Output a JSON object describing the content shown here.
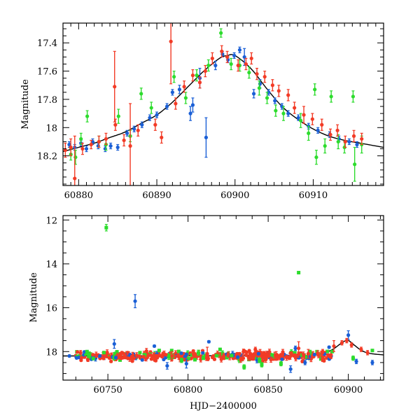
{
  "chart_data": [
    {
      "type": "scatter",
      "title": "",
      "xlabel": "",
      "ylabel": "Magnitude",
      "xlim": [
        60878,
        60919
      ],
      "ylim": [
        18.41,
        17.26
      ],
      "y_inverted": true,
      "x_ticks": [
        60880,
        60890,
        60900,
        60910
      ],
      "y_ticks": [
        17.4,
        17.6,
        17.8,
        18,
        18.2
      ],
      "model_curve": {
        "color": "#000000",
        "points": [
          [
            60878,
            18.17
          ],
          [
            60880,
            18.14
          ],
          [
            60882,
            18.11
          ],
          [
            60884,
            18.07
          ],
          [
            60886,
            18.03
          ],
          [
            60888,
            17.97
          ],
          [
            60890,
            17.91
          ],
          [
            60892,
            17.82
          ],
          [
            60894,
            17.71
          ],
          [
            60896,
            17.6
          ],
          [
            60898,
            17.51
          ],
          [
            60899,
            17.49
          ],
          [
            60900,
            17.49
          ],
          [
            60902,
            17.58
          ],
          [
            60904,
            17.72
          ],
          [
            60906,
            17.85
          ],
          [
            60908,
            17.94
          ],
          [
            60910,
            18.01
          ],
          [
            60912,
            18.06
          ],
          [
            60914,
            18.09
          ],
          [
            60916,
            18.11
          ],
          [
            60919,
            18.14
          ]
        ]
      },
      "series": [
        {
          "color": "#1a5fd6",
          "points": [
            [
              60878.8,
              18.12,
              0.02
            ],
            [
              60879.5,
              18.14,
              0.02
            ],
            [
              60880.3,
              18.11,
              0.02
            ],
            [
              60881,
              18.15,
              0.02
            ],
            [
              60881.8,
              18.1,
              0.02
            ],
            [
              60882.5,
              18.13,
              0.02
            ],
            [
              60883.4,
              18.15,
              0.02
            ],
            [
              60884.1,
              18.13,
              0.02
            ],
            [
              60885,
              18.14,
              0.02
            ],
            [
              60886.2,
              18.04,
              0.02
            ],
            [
              60887.1,
              18.01,
              0.02
            ],
            [
              60888.1,
              17.98,
              0.02
            ],
            [
              60889.1,
              17.93,
              0.02
            ],
            [
              60890,
              17.91,
              0.02
            ],
            [
              60891.3,
              17.85,
              0.02
            ],
            [
              60892,
              17.75,
              0.02
            ],
            [
              60892.9,
              17.73,
              0.03
            ],
            [
              60894.3,
              17.9,
              0.05
            ],
            [
              60894.6,
              17.84,
              0.05
            ],
            [
              60895.5,
              17.65,
              0.07
            ],
            [
              60896.3,
              18.07,
              0.14
            ],
            [
              60897.5,
              17.56,
              0.03
            ],
            [
              60898.4,
              17.48,
              0.02
            ],
            [
              60899.1,
              17.52,
              0.02
            ],
            [
              60899.9,
              17.49,
              0.02
            ],
            [
              60900.6,
              17.45,
              0.02
            ],
            [
              60901.2,
              17.5,
              0.06
            ],
            [
              60902.4,
              17.76,
              0.03
            ],
            [
              60903.2,
              17.69,
              0.03
            ],
            [
              60904.3,
              17.75,
              0.02
            ],
            [
              60905.1,
              17.81,
              0.02
            ],
            [
              60906,
              17.85,
              0.02
            ],
            [
              60906.8,
              17.9,
              0.02
            ],
            [
              60908.1,
              17.93,
              0.02
            ],
            [
              60909.4,
              17.99,
              0.02
            ],
            [
              60910.6,
              18.02,
              0.02
            ],
            [
              60912.1,
              18.05,
              0.02
            ],
            [
              60913.3,
              18.08,
              0.02
            ],
            [
              60914.6,
              18.1,
              0.02
            ],
            [
              60915.6,
              18.12,
              0.02
            ]
          ]
        },
        {
          "color": "#2ddc2d",
          "points": [
            [
              60879,
              18.19,
              0.04
            ],
            [
              60879.6,
              18.21,
              0.05
            ],
            [
              60880.3,
              18.08,
              0.04
            ],
            [
              60881.1,
              17.92,
              0.04
            ],
            [
              60882.6,
              18.1,
              0.04
            ],
            [
              60883.5,
              18.12,
              0.04
            ],
            [
              60885.1,
              17.92,
              0.05
            ],
            [
              60886.6,
              18.06,
              0.04
            ],
            [
              60888,
              17.76,
              0.04
            ],
            [
              60889.3,
              17.86,
              0.04
            ],
            [
              60892.2,
              17.64,
              0.04
            ],
            [
              60893.7,
              17.79,
              0.04
            ],
            [
              60895.1,
              17.63,
              0.04
            ],
            [
              60896.6,
              17.56,
              0.04
            ],
            [
              60898.2,
              17.33,
              0.03
            ],
            [
              60899.5,
              17.55,
              0.04
            ],
            [
              60900.6,
              17.56,
              0.04
            ],
            [
              60901.8,
              17.61,
              0.04
            ],
            [
              60903.1,
              17.72,
              0.05
            ],
            [
              60904.1,
              17.79,
              0.04
            ],
            [
              60905.2,
              17.88,
              0.04
            ],
            [
              60906.2,
              17.9,
              0.05
            ],
            [
              60908.4,
              17.95,
              0.05
            ],
            [
              60909.4,
              18.04,
              0.05
            ],
            [
              60910.2,
              17.73,
              0.04
            ],
            [
              60910.4,
              18.21,
              0.05
            ],
            [
              60911.5,
              18.13,
              0.05
            ],
            [
              60912.3,
              17.78,
              0.04
            ],
            [
              60913.2,
              18.1,
              0.05
            ],
            [
              60914,
              18.14,
              0.04
            ],
            [
              60915.1,
              17.78,
              0.04
            ],
            [
              60915.3,
              18.26,
              0.12
            ],
            [
              60916.2,
              18.12,
              0.06
            ]
          ]
        },
        {
          "color": "#f23b26",
          "points": [
            [
              60878.3,
              18.16,
              0.05
            ],
            [
              60879,
              18.14,
              0.06
            ],
            [
              60879.5,
              18.36,
              0.3
            ],
            [
              60880.5,
              18.15,
              0.04
            ],
            [
              60881.6,
              18.12,
              0.03
            ],
            [
              60882.6,
              18.1,
              0.04
            ],
            [
              60883.5,
              18.08,
              0.04
            ],
            [
              60884.6,
              17.71,
              0.25
            ],
            [
              60884.7,
              17.98,
              0.04
            ],
            [
              60885.8,
              18.09,
              0.04
            ],
            [
              60886.6,
              18.13,
              0.3
            ],
            [
              60887.6,
              18.02,
              0.04
            ],
            [
              60889.8,
              17.98,
              0.04
            ],
            [
              60890.6,
              18.07,
              0.04
            ],
            [
              60891.8,
              17.39,
              0.3
            ],
            [
              60892.4,
              17.83,
              0.04
            ],
            [
              60893.5,
              17.71,
              0.04
            ],
            [
              60894.6,
              17.63,
              0.04
            ],
            [
              60895.5,
              17.68,
              0.04
            ],
            [
              60896.2,
              17.6,
              0.04
            ],
            [
              60897.1,
              17.51,
              0.04
            ],
            [
              60898.3,
              17.46,
              0.04
            ],
            [
              60899,
              17.5,
              0.04
            ],
            [
              60900.4,
              17.56,
              0.04
            ],
            [
              60901.4,
              17.55,
              0.04
            ],
            [
              60902.1,
              17.51,
              0.04
            ],
            [
              60902.8,
              17.62,
              0.04
            ],
            [
              60903.8,
              17.64,
              0.04
            ],
            [
              60904.8,
              17.7,
              0.04
            ],
            [
              60905.6,
              17.74,
              0.04
            ],
            [
              60906.8,
              17.77,
              0.04
            ],
            [
              60907.6,
              17.86,
              0.04
            ],
            [
              60908.8,
              17.91,
              0.06
            ],
            [
              60909.9,
              17.94,
              0.04
            ],
            [
              60911.1,
              17.98,
              0.04
            ],
            [
              60912.2,
              18.05,
              0.04
            ],
            [
              60913.1,
              18.02,
              0.04
            ],
            [
              60914.1,
              18.1,
              0.04
            ],
            [
              60915.2,
              18.06,
              0.04
            ],
            [
              60916.2,
              18.08,
              0.04
            ]
          ]
        }
      ]
    },
    {
      "type": "scatter",
      "title": "",
      "xlabel": "HJD−2400000",
      "ylabel": "Magnitude",
      "xlim": [
        60722,
        60922
      ],
      "ylim": [
        19.3,
        11.8
      ],
      "y_inverted": true,
      "x_ticks": [
        60750,
        60800,
        60850,
        60900
      ],
      "y_ticks": [
        12,
        14,
        16,
        18
      ],
      "model_curve": {
        "color": "#000000",
        "points": [
          [
            60722,
            18.2
          ],
          [
            60800,
            18.19
          ],
          [
            60870,
            18.18
          ],
          [
            60880,
            18.13
          ],
          [
            60885,
            18.05
          ],
          [
            60890,
            17.91
          ],
          [
            60895,
            17.65
          ],
          [
            60898,
            17.51
          ],
          [
            60900,
            17.49
          ],
          [
            60904,
            17.72
          ],
          [
            60908,
            17.94
          ],
          [
            60912,
            18.06
          ],
          [
            60916,
            18.11
          ],
          [
            60922,
            18.15
          ]
        ]
      },
      "series": [
        {
          "color": "#1a5fd6",
          "points": [
            [
              60726,
              18.2,
              0.05
            ],
            [
              60745,
              18.2,
              0.05
            ],
            [
              60754,
              17.65,
              0.2
            ],
            [
              60767,
              15.7,
              0.3
            ],
            [
              60779,
              17.75,
              0.05
            ],
            [
              60787,
              18.65,
              0.15
            ],
            [
              60799,
              18.55,
              0.2
            ],
            [
              60813,
              17.55,
              0.05
            ],
            [
              60831,
              18.25,
              0.05
            ],
            [
              60844,
              18.1,
              0.05
            ],
            [
              60864,
              18.8,
              0.15
            ],
            [
              60867,
              17.85,
              0.1
            ],
            [
              60873,
              18.5,
              0.1
            ],
            [
              60888,
              17.8,
              0.05
            ],
            [
              60900,
              17.25,
              0.2
            ],
            [
              60905,
              18.45,
              0.1
            ],
            [
              60915,
              18.5,
              0.1
            ]
          ]
        },
        {
          "color": "#2ddc2d",
          "points": [
            [
              60737,
              18.0,
              0.05
            ],
            [
              60749,
              12.35,
              0.15
            ],
            [
              60770,
              18.05,
              0.05
            ],
            [
              60782,
              17.95,
              0.05
            ],
            [
              60796,
              18.4,
              0.1
            ],
            [
              60820,
              17.9,
              0.05
            ],
            [
              60835,
              18.7,
              0.1
            ],
            [
              60846,
              18.6,
              0.1
            ],
            [
              60858,
              18.55,
              0.1
            ],
            [
              60869,
              14.4,
              0.05
            ],
            [
              60876,
              18.0,
              0.05
            ],
            [
              60890,
              18.0,
              0.05
            ],
            [
              60903,
              18.3,
              0.1
            ],
            [
              60915,
              17.95,
              0.05
            ]
          ]
        },
        {
          "color": "#f23b26",
          "points": [
            [
              60733,
              18.05,
              0.1
            ],
            [
              60775,
              18.2,
              0.1
            ],
            [
              60790,
              18.2,
              0.2
            ],
            [
              60812,
              18.1,
              0.3
            ],
            [
              60825,
              18.15,
              0.1
            ],
            [
              60842,
              17.9,
              0.1
            ],
            [
              60855,
              18.2,
              0.2
            ],
            [
              60869,
              17.85,
              0.3
            ],
            [
              60875,
              18.1,
              0.2
            ],
            [
              60884,
              18.0,
              0.1
            ],
            [
              60891,
              17.75,
              0.25
            ],
            [
              60896,
              17.6,
              0.1
            ],
            [
              60899,
              17.5,
              0.1
            ],
            [
              60902,
              17.7,
              0.1
            ],
            [
              60908,
              17.9,
              0.1
            ],
            [
              60912,
              18.05,
              0.1
            ]
          ]
        }
      ],
      "dense_baseline": {
        "colors": [
          "#f23b26",
          "#2ddc2d",
          "#1a5fd6"
        ],
        "x_range": [
          60730,
          60890
        ],
        "mean": 18.2,
        "scatter": 0.12
      }
    }
  ]
}
